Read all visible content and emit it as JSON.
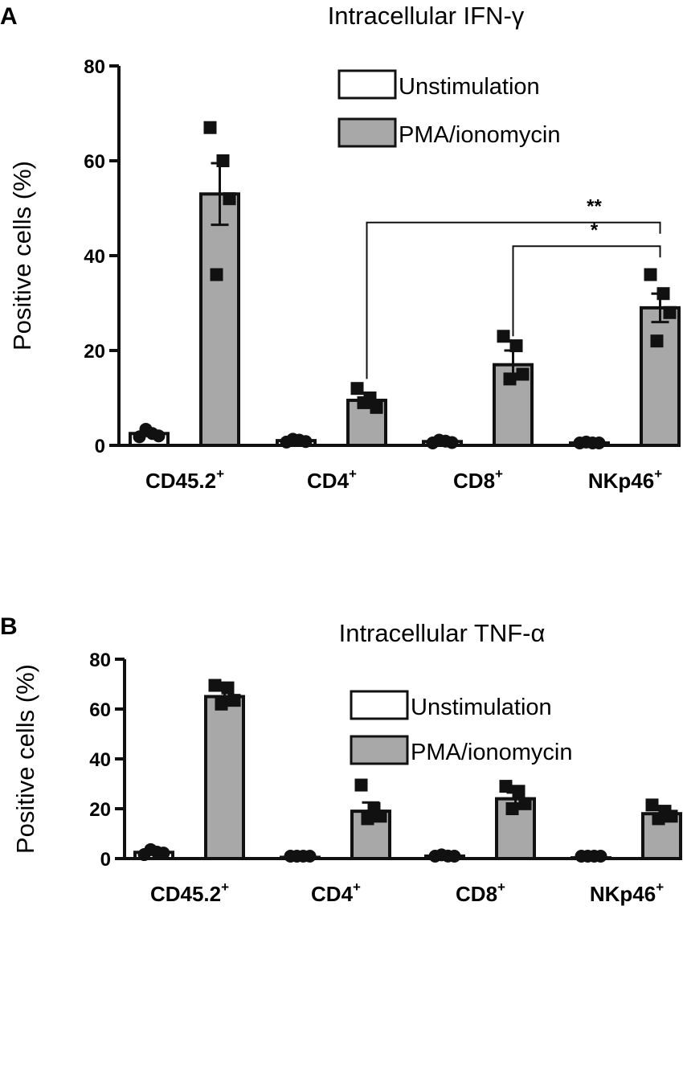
{
  "chart_data": [
    {
      "panel": "A",
      "type": "bar",
      "title": "Intracellular IFN-γ",
      "ylabel": "Positive cells (%)",
      "xlabel": "",
      "ylim": [
        0,
        80
      ],
      "yticks": [
        0,
        20,
        40,
        60,
        80
      ],
      "grid": false,
      "legend_position": "top-right",
      "categories": [
        {
          "base": "CD45.2",
          "sup": "+"
        },
        {
          "base": "CD4",
          "sup": "+"
        },
        {
          "base": "CD8",
          "sup": "+"
        },
        {
          "base": "NKp46",
          "sup": "+"
        }
      ],
      "series": [
        {
          "name": "Unstimulation",
          "color": "#ffffff",
          "values": [
            2.5,
            1.0,
            0.8,
            0.5
          ],
          "sem": [
            0.5,
            0.2,
            0.2,
            0.1
          ],
          "points": [
            [
              1.8,
              2.5,
              3.4,
              2.0
            ],
            [
              0.7,
              1.1,
              1.3,
              0.8
            ],
            [
              0.5,
              0.9,
              1.1,
              0.6
            ],
            [
              0.3,
              0.5,
              0.7,
              0.4
            ]
          ]
        },
        {
          "name": "PMA/ionomycin",
          "color": "#a8a8a8",
          "values": [
            53,
            9.5,
            17,
            29
          ],
          "sem": [
            6.5,
            1.5,
            3,
            3
          ],
          "points": [
            [
              67,
              60,
              36,
              52
            ],
            [
              12,
              10,
              9,
              8
            ],
            [
              23,
              21,
              14,
              15
            ],
            [
              36,
              32,
              22,
              28
            ]
          ]
        }
      ],
      "significance": [
        {
          "label": "**",
          "from": 1,
          "to": 3,
          "y": 47
        },
        {
          "label": "*",
          "from": 2,
          "to": 3,
          "y": 42
        }
      ]
    },
    {
      "panel": "B",
      "type": "bar",
      "title": "Intracellular TNF-α",
      "ylabel": "Positive cells (%)",
      "xlabel": "",
      "ylim": [
        0,
        80
      ],
      "yticks": [
        0,
        20,
        40,
        60,
        80
      ],
      "grid": false,
      "legend_position": "top-right",
      "categories": [
        {
          "base": "CD45.2",
          "sup": "+"
        },
        {
          "base": "CD4",
          "sup": "+"
        },
        {
          "base": "CD8",
          "sup": "+"
        },
        {
          "base": "NKp46",
          "sup": "+"
        }
      ],
      "series": [
        {
          "name": "Unstimulation",
          "color": "#ffffff",
          "values": [
            2.5,
            0.5,
            1.0,
            0.3
          ],
          "sem": [
            0.6,
            0.1,
            0.2,
            0.1
          ],
          "points": [
            [
              1.6,
              2.6,
              3.6,
              2.2
            ],
            [
              0.3,
              0.5,
              0.7,
              0.4
            ],
            [
              0.6,
              1.0,
              1.5,
              0.9
            ],
            [
              0.2,
              0.3,
              0.4,
              0.3
            ]
          ]
        },
        {
          "name": "PMA/ionomycin",
          "color": "#a8a8a8",
          "values": [
            65,
            19,
            24,
            18
          ],
          "sem": [
            2.5,
            3.5,
            2.5,
            1.5
          ],
          "points": [
            [
              69.5,
              68.5,
              62,
              63.5
            ],
            [
              29.5,
              20,
              16,
              17
            ],
            [
              29,
              27,
              20,
              22
            ],
            [
              21.5,
              19,
              16,
              17
            ]
          ]
        }
      ],
      "significance": []
    }
  ]
}
